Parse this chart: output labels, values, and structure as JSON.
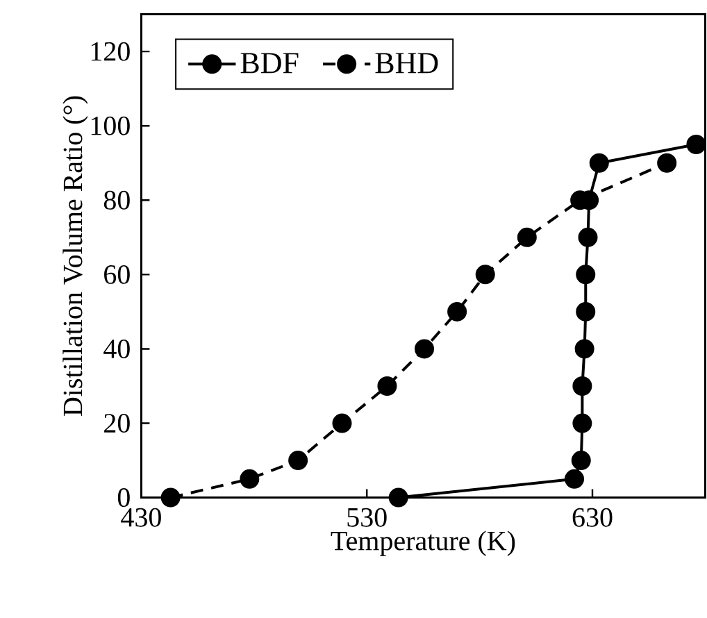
{
  "chart_data": {
    "type": "line",
    "xlabel": "Temperature (K)",
    "ylabel": "Distillation Volume Ratio (°)",
    "xlim": [
      430,
      680
    ],
    "xticks": [
      430,
      530,
      630
    ],
    "ylim": [
      0,
      130
    ],
    "yticks": [
      0,
      20,
      40,
      60,
      80,
      100,
      120
    ],
    "legend": "top left",
    "marker": "circle",
    "grid": false,
    "series": [
      {
        "name": "BDF",
        "color": "#000000",
        "line_style": "solid",
        "x": [
          544,
          622,
          625,
          625.5,
          625.5,
          626.5,
          627,
          627,
          628,
          628.5,
          633,
          676
        ],
        "values": [
          0,
          5,
          10,
          20,
          30,
          40,
          50,
          60,
          70,
          80,
          90,
          95
        ]
      },
      {
        "name": "BHD",
        "color": "#000000",
        "line_style": "dashed",
        "x": [
          443,
          478,
          499.5,
          519,
          539,
          555.5,
          570,
          582.5,
          601,
          624.5,
          663
        ],
        "values": [
          0,
          5,
          10,
          20,
          30,
          40,
          50,
          60,
          70,
          80,
          90
        ]
      }
    ]
  }
}
